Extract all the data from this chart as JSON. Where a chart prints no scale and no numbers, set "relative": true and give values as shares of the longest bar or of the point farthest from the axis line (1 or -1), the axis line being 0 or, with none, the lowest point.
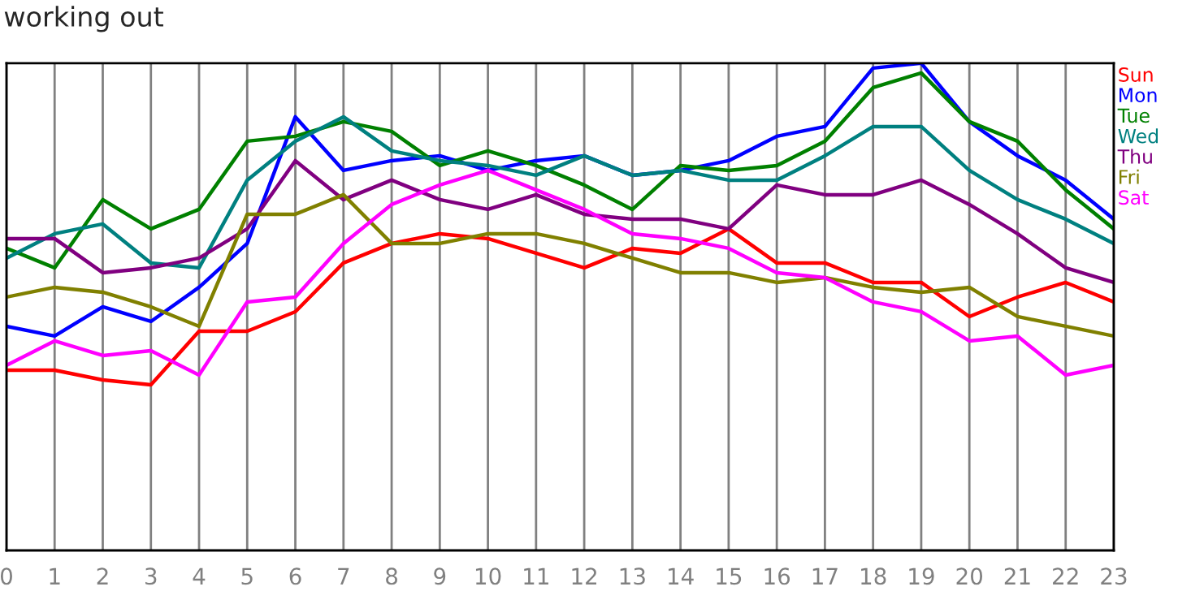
{
  "chart_data": {
    "type": "line",
    "title": "working out",
    "relative": true,
    "x": [
      0,
      1,
      2,
      3,
      4,
      5,
      6,
      7,
      8,
      9,
      10,
      11,
      12,
      13,
      14,
      15,
      16,
      17,
      18,
      19,
      20,
      21,
      22,
      23
    ],
    "xlim": [
      0,
      23
    ],
    "xticks": [
      0,
      1,
      2,
      3,
      4,
      5,
      6,
      7,
      8,
      9,
      10,
      11,
      12,
      13,
      14,
      15,
      16,
      17,
      18,
      19,
      20,
      21,
      22,
      23
    ],
    "grid": "x",
    "legend": "top right",
    "tick_labels": "x",
    "marker": "none",
    "line_style": "solid",
    "series": [
      {
        "name": "Sun",
        "color": "#ff0000",
        "values": [
          0.37,
          0.37,
          0.35,
          0.34,
          0.45,
          0.45,
          0.49,
          0.59,
          0.63,
          0.65,
          0.64,
          0.61,
          0.58,
          0.62,
          0.61,
          0.66,
          0.59,
          0.59,
          0.55,
          0.55,
          0.48,
          0.52,
          0.55,
          0.51
        ]
      },
      {
        "name": "Mon",
        "color": "#0000ff",
        "values": [
          0.46,
          0.44,
          0.5,
          0.47,
          0.54,
          0.63,
          0.89,
          0.78,
          0.8,
          0.81,
          0.78,
          0.8,
          0.81,
          0.77,
          0.78,
          0.8,
          0.85,
          0.87,
          0.99,
          1,
          0.88,
          0.81,
          0.76,
          0.68
        ]
      },
      {
        "name": "Tue",
        "color": "#008000",
        "values": [
          0.62,
          0.58,
          0.72,
          0.66,
          0.7,
          0.84,
          0.85,
          0.88,
          0.86,
          0.79,
          0.82,
          0.79,
          0.75,
          0.7,
          0.79,
          0.78,
          0.79,
          0.84,
          0.95,
          0.98,
          0.88,
          0.84,
          0.74,
          0.66
        ]
      },
      {
        "name": "Wed",
        "color": "#008080",
        "values": [
          0.6,
          0.65,
          0.67,
          0.59,
          0.58,
          0.76,
          0.84,
          0.89,
          0.82,
          0.8,
          0.79,
          0.77,
          0.81,
          0.77,
          0.78,
          0.76,
          0.76,
          0.81,
          0.87,
          0.87,
          0.78,
          0.72,
          0.68,
          0.63
        ]
      },
      {
        "name": "Thu",
        "color": "#800080",
        "values": [
          0.64,
          0.64,
          0.57,
          0.58,
          0.6,
          0.66,
          0.8,
          0.72,
          0.76,
          0.72,
          0.7,
          0.73,
          0.69,
          0.68,
          0.68,
          0.66,
          0.75,
          0.73,
          0.73,
          0.76,
          0.71,
          0.65,
          0.58,
          0.55
        ]
      },
      {
        "name": "Fri",
        "color": "#808000",
        "values": [
          0.52,
          0.54,
          0.53,
          0.5,
          0.46,
          0.69,
          0.69,
          0.73,
          0.63,
          0.63,
          0.65,
          0.65,
          0.63,
          0.6,
          0.57,
          0.57,
          0.55,
          0.56,
          0.54,
          0.53,
          0.54,
          0.48,
          0.46,
          0.44
        ]
      },
      {
        "name": "Sat",
        "color": "#ff00ff",
        "values": [
          0.38,
          0.43,
          0.4,
          0.41,
          0.36,
          0.51,
          0.52,
          0.63,
          0.71,
          0.75,
          0.78,
          0.74,
          0.7,
          0.65,
          0.64,
          0.62,
          0.57,
          0.56,
          0.51,
          0.49,
          0.43,
          0.44,
          0.36,
          0.38
        ]
      }
    ]
  }
}
